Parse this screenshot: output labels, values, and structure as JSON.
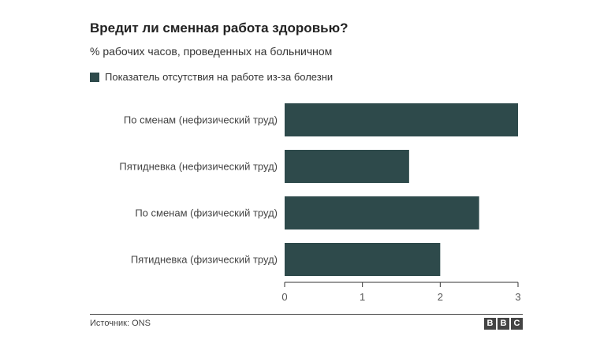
{
  "header": {
    "title": "Вредит ли сменная работа здоровью?",
    "subtitle": "% рабочих часов, проведенных на больничном"
  },
  "legend": {
    "label": "Показатель отсутствия на работе из-за болезни",
    "color": "#2e4a4b"
  },
  "chart_data": {
    "type": "bar",
    "orientation": "horizontal",
    "title": "Вредит ли сменная работа здоровью?",
    "subtitle": "% рабочих часов, проведенных на больничном",
    "categories": [
      "По сменам (нефизический труд)",
      "Пятидневка (нефизический труд)",
      "По сменам (физический труд)",
      "Пятидневка (физический труд)"
    ],
    "series": [
      {
        "name": "Показатель отсутствия на работе из-за болезни",
        "values": [
          3.0,
          1.6,
          2.5,
          2.0
        ]
      }
    ],
    "xlim": [
      0,
      3
    ],
    "xticks": [
      "0",
      "1",
      "2",
      "3"
    ],
    "grid": false,
    "legend_position": "top-left",
    "bar_color": "#2e4a4b"
  },
  "footer": {
    "source": "Источник: ONS",
    "logo_letters": [
      "B",
      "B",
      "C"
    ]
  }
}
